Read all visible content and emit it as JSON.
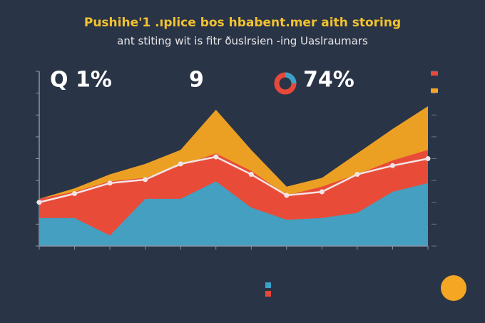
{
  "chart_data": {
    "type": "area",
    "title": "Pushihe'1 .ıplice bos hbabent.mer aith storing",
    "subtitle": "ant stiting wit is fitr ðuslrsien -ing Uaslraumars",
    "stats": [
      "Q 1%",
      "9",
      "74%"
    ],
    "categories": [
      null,
      null,
      null,
      null,
      null,
      null,
      null,
      null,
      null,
      null,
      null,
      null
    ],
    "series": [
      {
        "color": "#f5a623",
        "values": [
          27,
          33,
          41,
          47,
          55,
          78,
          55,
          34,
          39,
          53,
          67,
          80
        ]
      },
      {
        "color": "#e8483a",
        "values": [
          27,
          31,
          37,
          39,
          46,
          53,
          43,
          29,
          34,
          41,
          49,
          55
        ]
      },
      {
        "color": "#3ba3c7",
        "values": [
          16,
          16,
          6,
          27,
          27,
          37,
          22,
          15,
          16,
          19,
          31,
          36
        ]
      },
      {
        "color": "#f2e4e4",
        "values": [
          25,
          30,
          36,
          38,
          47,
          51,
          41,
          29,
          31,
          41,
          46,
          50
        ],
        "style": "line"
      }
    ],
    "ylim": [
      0,
      100
    ],
    "yticks": [
      0,
      12.5,
      25,
      37.5,
      50,
      62.5,
      75,
      87.5,
      100
    ]
  }
}
